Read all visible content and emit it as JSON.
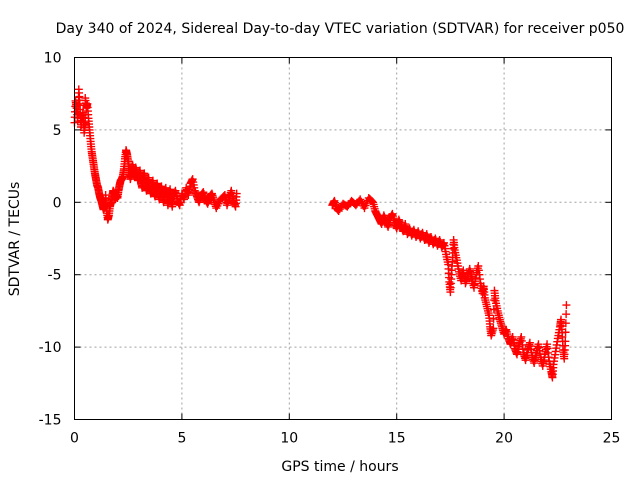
{
  "chart_data": {
    "type": "scatter",
    "title": "Day 340 of 2024, Sidereal Day-to-day VTEC variation (SDTVAR) for receiver p050",
    "xlabel": "GPS time / hours",
    "ylabel": "SDTVAR / TECUs",
    "xlim": [
      0,
      25
    ],
    "ylim": [
      -15,
      10
    ],
    "xticks": [
      0,
      5,
      10,
      15,
      20,
      25
    ],
    "yticks": [
      -15,
      -10,
      -5,
      0,
      5,
      10
    ],
    "xtick_labels": [
      "0",
      "5",
      "10",
      "15",
      "20",
      "25"
    ],
    "ytick_labels": [
      "-15",
      "-10",
      "-5",
      "0",
      "5",
      "10"
    ],
    "grid": true,
    "marker": "+",
    "series": [
      {
        "name": "SDTVAR",
        "color": "#ff0000",
        "points": [
          [
            0.0,
            5.5
          ],
          [
            0.05,
            7.0
          ],
          [
            0.1,
            6.5
          ],
          [
            0.15,
            5.6
          ],
          [
            0.2,
            7.8
          ],
          [
            0.25,
            6.8
          ],
          [
            0.3,
            5.2
          ],
          [
            0.35,
            5.8
          ],
          [
            0.4,
            6.2
          ],
          [
            0.45,
            4.8
          ],
          [
            0.5,
            5.5
          ],
          [
            0.5,
            7.2
          ],
          [
            0.55,
            6.5
          ],
          [
            0.6,
            6.8
          ],
          [
            0.65,
            5.8
          ],
          [
            0.7,
            5.0
          ],
          [
            0.75,
            4.2
          ],
          [
            0.8,
            3.5
          ],
          [
            0.85,
            3.0
          ],
          [
            0.9,
            2.5
          ],
          [
            0.95,
            2.0
          ],
          [
            1.0,
            1.6
          ],
          [
            1.05,
            1.2
          ],
          [
            1.1,
            1.0
          ],
          [
            1.15,
            0.6
          ],
          [
            1.2,
            0.3
          ],
          [
            1.25,
            0.1
          ],
          [
            1.3,
            -0.2
          ],
          [
            1.35,
            -0.5
          ],
          [
            1.4,
            -0.3
          ],
          [
            1.45,
            0.5
          ],
          [
            1.5,
            -0.6
          ],
          [
            1.55,
            -1.2
          ],
          [
            1.6,
            -0.9
          ],
          [
            1.65,
            -0.3
          ],
          [
            1.7,
            0.0
          ],
          [
            1.75,
            0.4
          ],
          [
            1.8,
            0.8
          ],
          [
            1.85,
            0.6
          ],
          [
            1.9,
            0.2
          ],
          [
            1.95,
            0.5
          ],
          [
            2.0,
            0.3
          ],
          [
            2.05,
            0.8
          ],
          [
            2.1,
            1.2
          ],
          [
            2.15,
            1.5
          ],
          [
            2.2,
            1.6
          ],
          [
            2.25,
            1.8
          ],
          [
            2.3,
            2.3
          ],
          [
            2.35,
            3.0
          ],
          [
            2.4,
            3.6
          ],
          [
            2.45,
            3.3
          ],
          [
            2.5,
            2.8
          ],
          [
            2.55,
            2.2
          ],
          [
            2.6,
            1.6
          ],
          [
            2.65,
            2.0
          ],
          [
            2.7,
            2.6
          ],
          [
            2.75,
            2.2
          ],
          [
            2.8,
            1.8
          ],
          [
            2.85,
            2.4
          ],
          [
            2.9,
            2.0
          ],
          [
            2.95,
            1.5
          ],
          [
            3.0,
            1.8
          ],
          [
            3.05,
            2.2
          ],
          [
            3.1,
            1.4
          ],
          [
            3.15,
            1.0
          ],
          [
            3.2,
            1.6
          ],
          [
            3.25,
            2.0
          ],
          [
            3.3,
            1.3
          ],
          [
            3.35,
            0.8
          ],
          [
            3.4,
            1.2
          ],
          [
            3.45,
            1.7
          ],
          [
            3.5,
            1.0
          ],
          [
            3.55,
            0.6
          ],
          [
            3.6,
            1.1
          ],
          [
            3.65,
            1.5
          ],
          [
            3.7,
            0.7
          ],
          [
            3.75,
            0.4
          ],
          [
            3.8,
            1.0
          ],
          [
            3.85,
            1.3
          ],
          [
            3.9,
            0.6
          ],
          [
            3.95,
            0.2
          ],
          [
            4.0,
            0.8
          ],
          [
            4.05,
            1.1
          ],
          [
            4.1,
            0.4
          ],
          [
            4.15,
            0.0
          ],
          [
            4.2,
            0.6
          ],
          [
            4.25,
            1.0
          ],
          [
            4.3,
            0.3
          ],
          [
            4.35,
            -0.2
          ],
          [
            4.4,
            0.5
          ],
          [
            4.45,
            0.9
          ],
          [
            4.5,
            0.2
          ],
          [
            4.55,
            -0.3
          ],
          [
            4.6,
            0.4
          ],
          [
            4.7,
            0.8
          ],
          [
            4.8,
            0.1
          ],
          [
            4.9,
            -0.2
          ],
          [
            5.0,
            0.6
          ],
          [
            5.1,
            0.2
          ],
          [
            5.2,
            1.0
          ],
          [
            5.3,
            0.5
          ],
          [
            5.4,
            1.3
          ],
          [
            5.5,
            1.6
          ],
          [
            5.6,
            0.8
          ],
          [
            5.7,
            0.4
          ],
          [
            5.8,
            0.0
          ],
          [
            5.9,
            0.5
          ],
          [
            6.0,
            0.7
          ],
          [
            6.1,
            0.2
          ],
          [
            6.2,
            -0.1
          ],
          [
            6.3,
            0.4
          ],
          [
            6.4,
            0.6
          ],
          [
            6.5,
            0.1
          ],
          [
            6.6,
            -0.4
          ],
          [
            6.8,
            0.2
          ],
          [
            7.0,
            0.5
          ],
          [
            7.1,
            -0.2
          ],
          [
            7.2,
            0.3
          ],
          [
            7.3,
            0.8
          ],
          [
            7.4,
            0.1
          ],
          [
            7.5,
            -0.3
          ],
          [
            7.55,
            0.6
          ],
          [
            12.0,
            -0.2
          ],
          [
            12.1,
            0.1
          ],
          [
            12.2,
            -0.4
          ],
          [
            12.3,
            -0.6
          ],
          [
            12.5,
            -0.1
          ],
          [
            12.7,
            -0.3
          ],
          [
            12.9,
            0.1
          ],
          [
            13.1,
            -0.2
          ],
          [
            13.3,
            0.2
          ],
          [
            13.5,
            -0.4
          ],
          [
            13.7,
            0.3
          ],
          [
            13.9,
            0.0
          ],
          [
            14.0,
            -0.6
          ],
          [
            14.1,
            -0.9
          ],
          [
            14.2,
            -1.2
          ],
          [
            14.3,
            -1.5
          ],
          [
            14.4,
            -0.9
          ],
          [
            14.5,
            -1.3
          ],
          [
            14.6,
            -1.7
          ],
          [
            14.7,
            -1.1
          ],
          [
            14.8,
            -0.8
          ],
          [
            14.9,
            -1.4
          ],
          [
            15.0,
            -1.8
          ],
          [
            15.1,
            -1.2
          ],
          [
            15.2,
            -1.6
          ],
          [
            15.3,
            -2.0
          ],
          [
            15.4,
            -1.5
          ],
          [
            15.5,
            -2.2
          ],
          [
            15.6,
            -1.8
          ],
          [
            15.7,
            -2.3
          ],
          [
            15.8,
            -1.9
          ],
          [
            15.9,
            -2.4
          ],
          [
            16.0,
            -2.0
          ],
          [
            16.1,
            -2.5
          ],
          [
            16.2,
            -2.1
          ],
          [
            16.3,
            -2.6
          ],
          [
            16.4,
            -2.2
          ],
          [
            16.5,
            -2.8
          ],
          [
            16.6,
            -2.4
          ],
          [
            16.7,
            -2.9
          ],
          [
            16.8,
            -2.5
          ],
          [
            16.9,
            -3.0
          ],
          [
            17.0,
            -2.6
          ],
          [
            17.1,
            -3.1
          ],
          [
            17.2,
            -2.8
          ],
          [
            17.3,
            -3.6
          ],
          [
            17.4,
            -4.3
          ],
          [
            17.45,
            -5.5
          ],
          [
            17.5,
            -6.2
          ],
          [
            17.55,
            -5.0
          ],
          [
            17.6,
            -3.8
          ],
          [
            17.65,
            -2.6
          ],
          [
            17.7,
            -3.3
          ],
          [
            17.8,
            -4.0
          ],
          [
            17.9,
            -4.8
          ],
          [
            18.0,
            -5.4
          ],
          [
            18.1,
            -4.7
          ],
          [
            18.2,
            -5.6
          ],
          [
            18.3,
            -5.1
          ],
          [
            18.4,
            -4.6
          ],
          [
            18.5,
            -5.3
          ],
          [
            18.6,
            -5.9
          ],
          [
            18.7,
            -5.0
          ],
          [
            18.8,
            -4.4
          ],
          [
            18.9,
            -5.6
          ],
          [
            19.0,
            -6.3
          ],
          [
            19.05,
            -5.8
          ],
          [
            19.1,
            -6.6
          ],
          [
            19.2,
            -7.2
          ],
          [
            19.3,
            -7.8
          ],
          [
            19.35,
            -8.6
          ],
          [
            19.4,
            -9.2
          ],
          [
            19.5,
            -8.7
          ],
          [
            19.55,
            -6.1
          ],
          [
            19.6,
            -6.8
          ],
          [
            19.7,
            -7.5
          ],
          [
            19.8,
            -8.1
          ],
          [
            19.9,
            -8.6
          ],
          [
            20.0,
            -9.1
          ],
          [
            20.1,
            -8.8
          ],
          [
            20.2,
            -9.4
          ],
          [
            20.3,
            -9.8
          ],
          [
            20.4,
            -9.3
          ],
          [
            20.5,
            -10.1
          ],
          [
            20.6,
            -10.5
          ],
          [
            20.7,
            -9.8
          ],
          [
            20.8,
            -9.3
          ],
          [
            20.9,
            -10.4
          ],
          [
            21.0,
            -10.9
          ],
          [
            21.1,
            -10.2
          ],
          [
            21.2,
            -9.7
          ],
          [
            21.3,
            -10.6
          ],
          [
            21.4,
            -11.1
          ],
          [
            21.5,
            -10.4
          ],
          [
            21.6,
            -9.8
          ],
          [
            21.7,
            -10.7
          ],
          [
            21.8,
            -11.3
          ],
          [
            21.9,
            -10.5
          ],
          [
            22.0,
            -9.8
          ],
          [
            22.1,
            -11.0
          ],
          [
            22.2,
            -11.7
          ],
          [
            22.25,
            -12.1
          ],
          [
            22.3,
            -11.2
          ],
          [
            22.4,
            -10.3
          ],
          [
            22.5,
            -9.4
          ],
          [
            22.6,
            -8.6
          ],
          [
            22.65,
            -8.1
          ],
          [
            22.7,
            -9.0
          ],
          [
            22.75,
            -10.2
          ],
          [
            22.8,
            -10.8
          ],
          [
            22.85,
            -9.6
          ],
          [
            22.9,
            -7.1
          ]
        ]
      }
    ]
  }
}
